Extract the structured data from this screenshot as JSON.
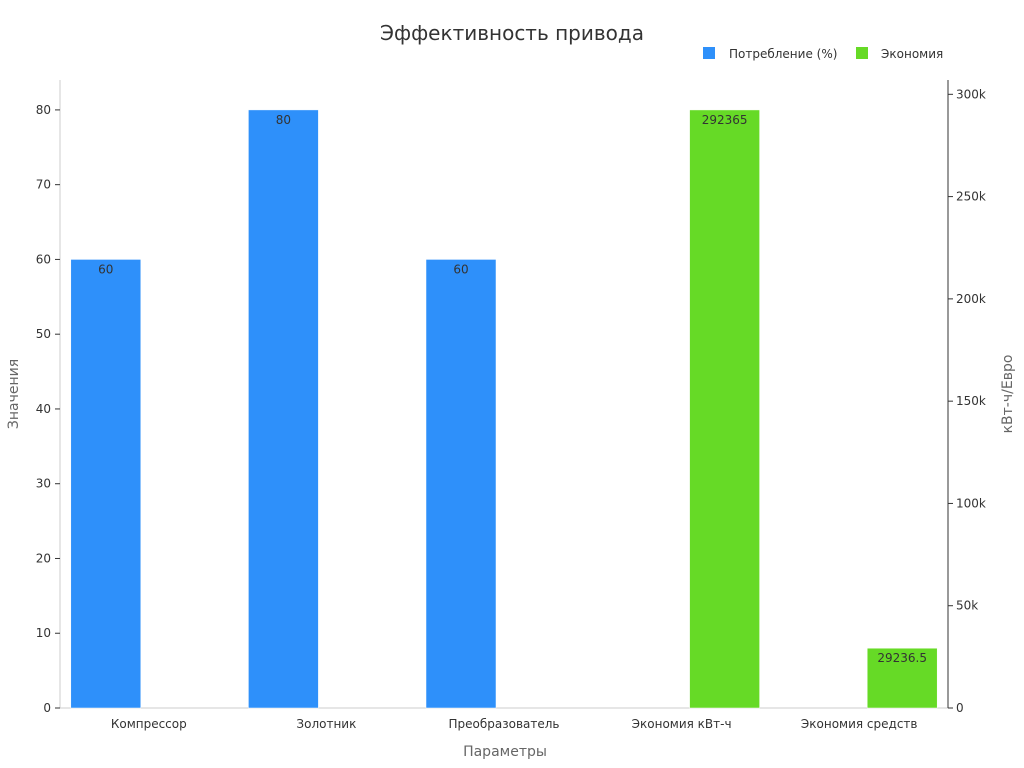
{
  "chart_data": {
    "type": "bar",
    "title": "Эффективность привода",
    "xlabel": "Параметры",
    "ylabel": "Значения",
    "y2label": "кВт-ч/Евро",
    "categories": [
      "Компрессор",
      "Золотник",
      "Преобразователь",
      "Экономия кВт-ч",
      "Экономия средств"
    ],
    "ylim": [
      0,
      84
    ],
    "y2lim": [
      0,
      307000
    ],
    "yticks": [
      0,
      10,
      20,
      30,
      40,
      50,
      60,
      70,
      80
    ],
    "y2ticks": [
      0,
      50000,
      100000,
      150000,
      200000,
      250000,
      300000
    ],
    "y2tick_labels": [
      "0",
      "50k",
      "100k",
      "150k",
      "200k",
      "250k",
      "300k"
    ],
    "legend_position": "top-right",
    "grid": false,
    "series": [
      {
        "name": "Потребление (%)",
        "axis": "left",
        "color": "#2e90fa",
        "values": [
          60,
          80,
          60,
          null,
          null
        ],
        "labels": [
          "60",
          "80",
          "60",
          "",
          ""
        ]
      },
      {
        "name": "Экономия",
        "axis": "right",
        "color": "#66da26",
        "values": [
          null,
          null,
          null,
          292365,
          29236.5
        ],
        "labels": [
          "",
          "",
          "",
          "292365",
          "29236.5"
        ]
      }
    ]
  }
}
